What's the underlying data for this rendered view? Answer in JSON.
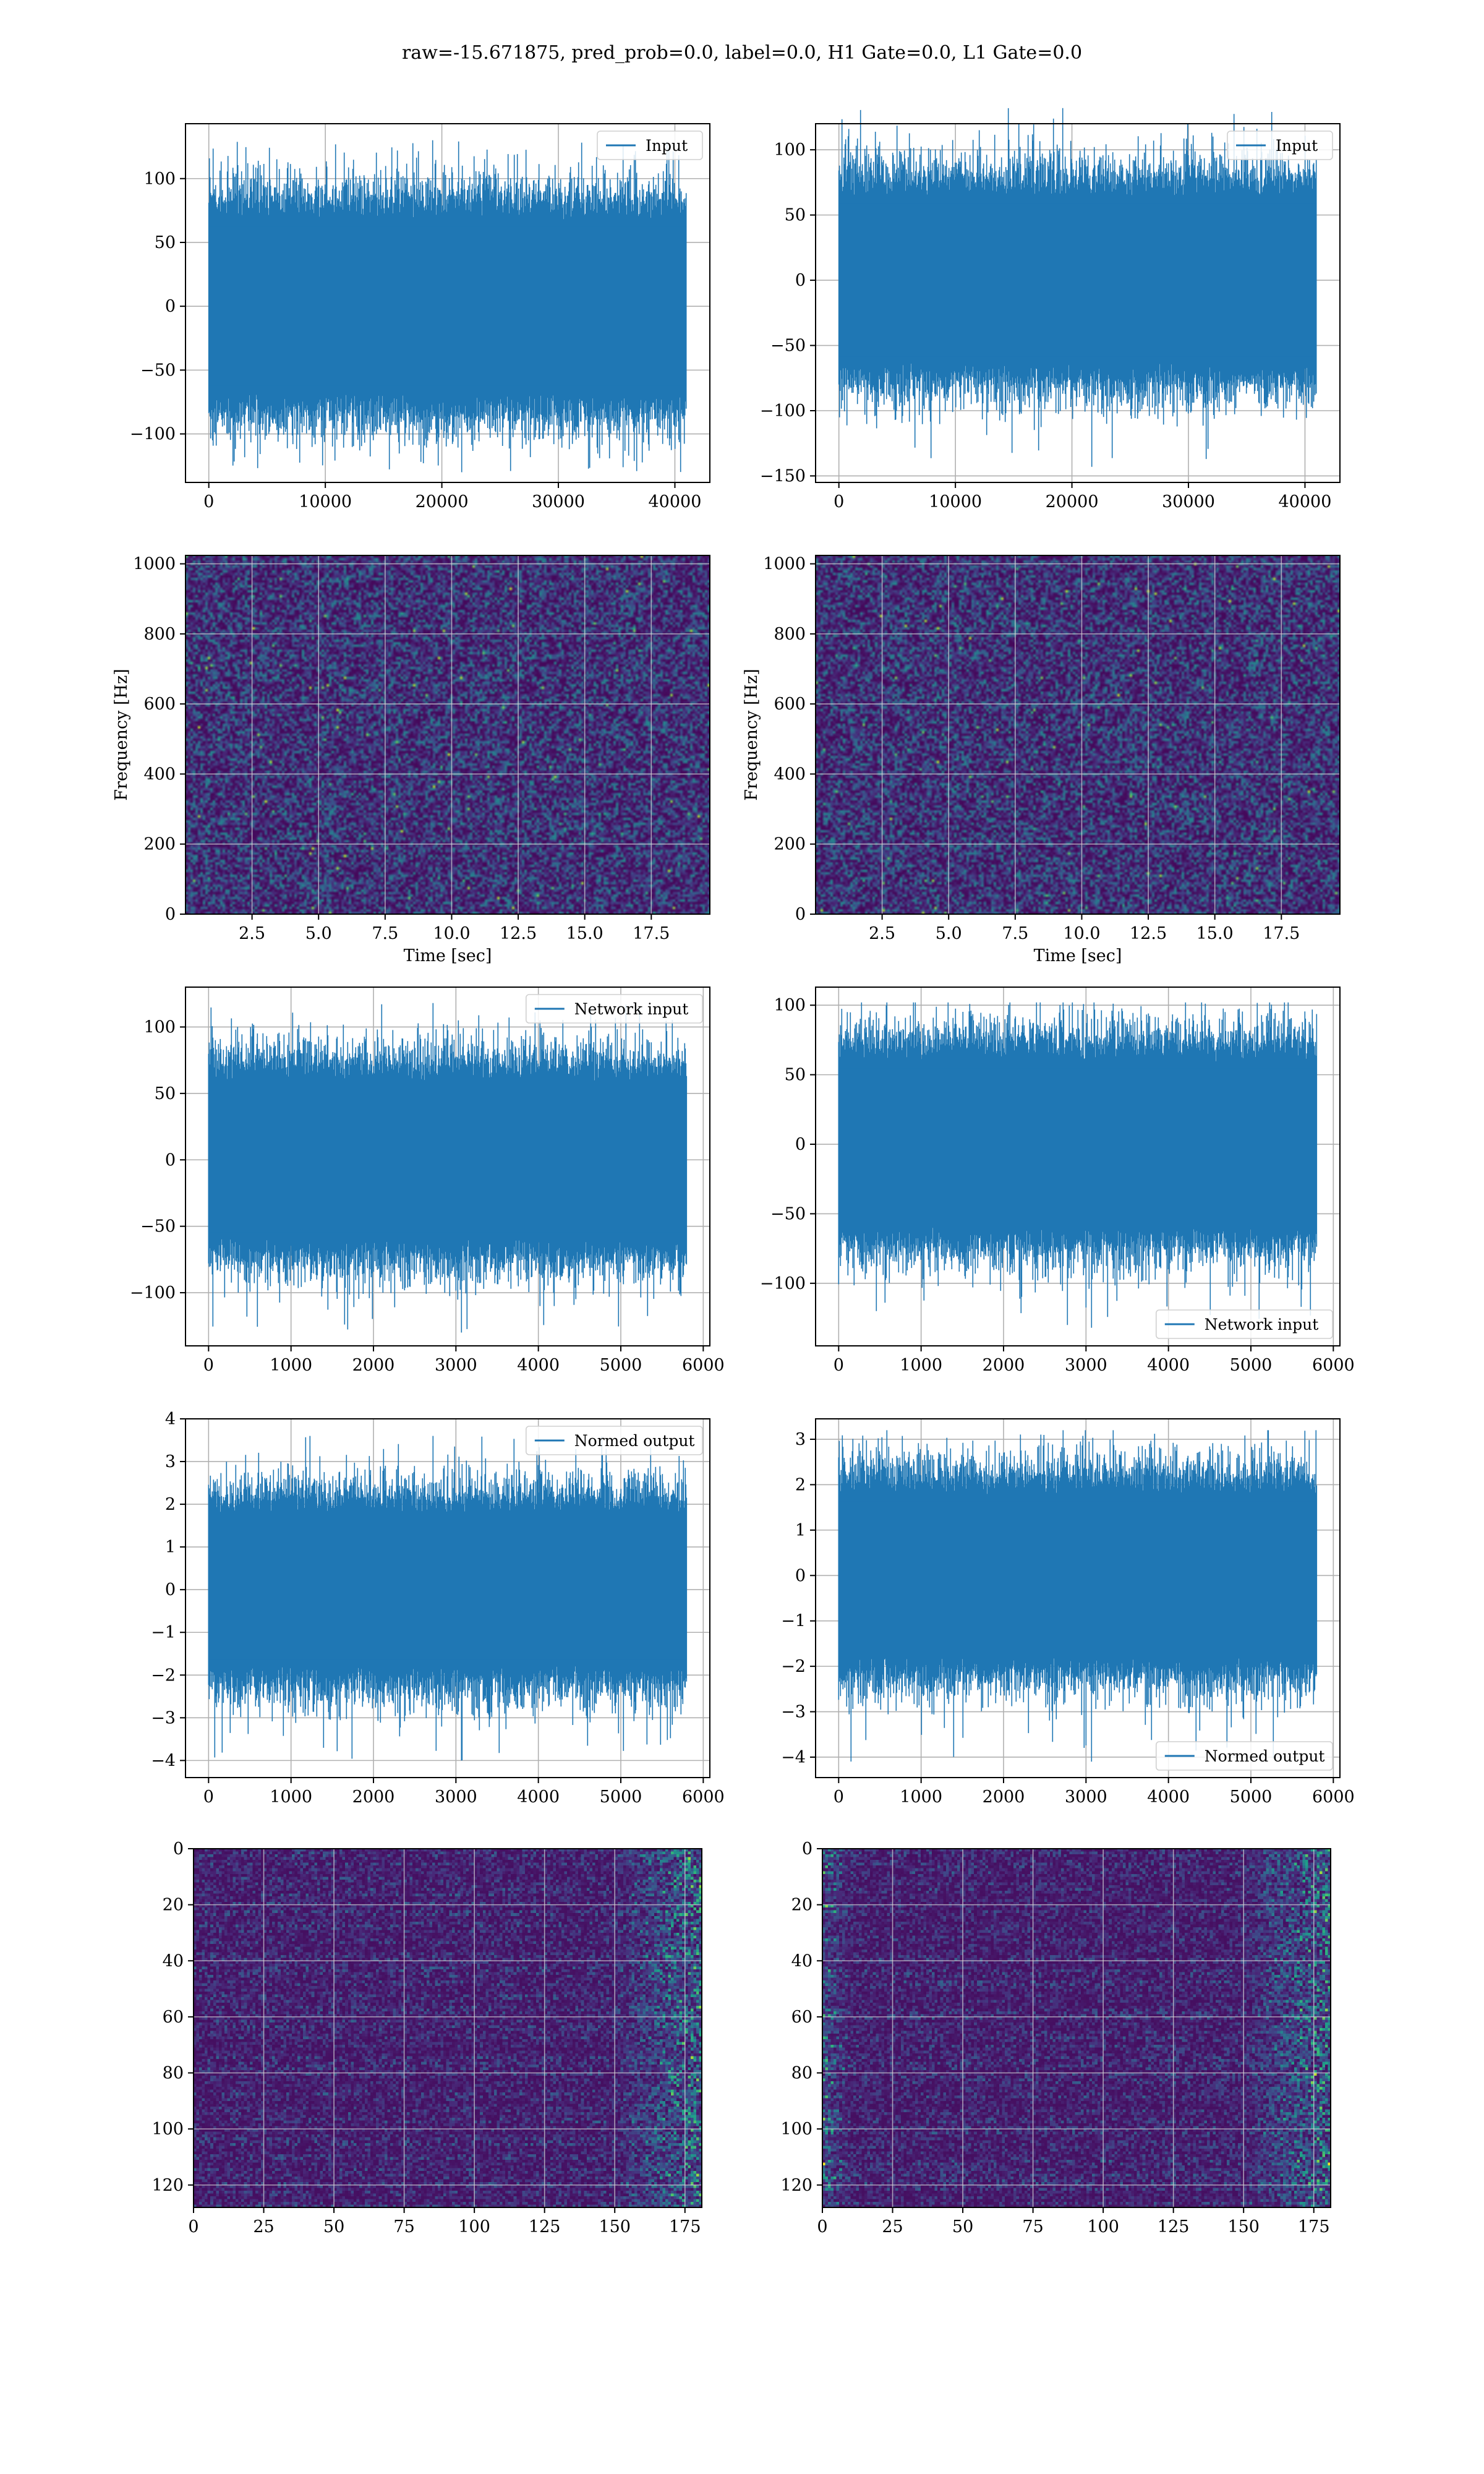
{
  "title": "raw=-15.671875, pred_prob=0.0, label=0.0, H1 Gate=0.0, L1 Gate=0.0",
  "colors": {
    "series": "#1f77b4",
    "grid": "#b0b0b0",
    "axis": "#000000"
  },
  "chart_data": [
    {
      "id": "input-left",
      "type": "line",
      "series": [
        {
          "name": "Input",
          "n_samples": 40960,
          "amplitude_range": [
            -130,
            130
          ],
          "center": 0,
          "envelope": [
            -80,
            80
          ]
        }
      ],
      "xlim": [
        -2000,
        43000
      ],
      "ylim": [
        -138,
        143
      ],
      "xticks": [
        0,
        10000,
        20000,
        30000,
        40000
      ],
      "yticks": [
        -100,
        -50,
        0,
        50,
        100
      ],
      "legend_position": "top-right",
      "grid": true,
      "xlabel": "",
      "ylabel": ""
    },
    {
      "id": "input-right",
      "type": "line",
      "series": [
        {
          "name": "Input",
          "n_samples": 40960,
          "amplitude_range": [
            -143,
            132
          ],
          "center": 0,
          "envelope": [
            -75,
            75
          ]
        }
      ],
      "xlim": [
        -2000,
        43000
      ],
      "ylim": [
        -155,
        120
      ],
      "xticks": [
        0,
        10000,
        20000,
        30000,
        40000
      ],
      "yticks": [
        -150,
        -100,
        -50,
        0,
        50,
        100
      ],
      "legend_position": "top-right",
      "grid": true,
      "xlabel": "",
      "ylabel": ""
    },
    {
      "id": "spectrogram-left",
      "type": "heatmap",
      "colormap": "viridis",
      "xlim": [
        0,
        19.7
      ],
      "ylim": [
        0,
        1024
      ],
      "xticks": [
        2.5,
        5.0,
        7.5,
        10.0,
        12.5,
        15.0,
        17.5
      ],
      "yticks": [
        0,
        200,
        400,
        600,
        800,
        1000
      ],
      "xlabel": "Time [sec]",
      "ylabel": "Frequency [Hz]",
      "grid": true,
      "notable": "sparse bright spots, e.g. near t≈6.1 s, f≈835 Hz"
    },
    {
      "id": "spectrogram-right",
      "type": "heatmap",
      "colormap": "viridis",
      "xlim": [
        0,
        19.7
      ],
      "ylim": [
        0,
        1024
      ],
      "xticks": [
        2.5,
        5.0,
        7.5,
        10.0,
        12.5,
        15.0,
        17.5
      ],
      "yticks": [
        0,
        200,
        400,
        600,
        800,
        1000
      ],
      "xlabel": "Time [sec]",
      "ylabel": "Frequency [Hz]",
      "grid": true,
      "notable": "sparse bright spots, e.g. near t≈11.3 s, f≈270 Hz"
    },
    {
      "id": "network-input-left",
      "type": "line",
      "series": [
        {
          "name": "Network input",
          "n_samples": 5800,
          "amplitude_range": [
            -130,
            118
          ],
          "center": 0,
          "envelope": [
            -70,
            70
          ]
        }
      ],
      "xlim": [
        -280,
        6080
      ],
      "ylim": [
        -140,
        130
      ],
      "xticks": [
        0,
        1000,
        2000,
        3000,
        4000,
        5000,
        6000
      ],
      "yticks": [
        -100,
        -50,
        0,
        50,
        100
      ],
      "legend_position": "top-right",
      "grid": true,
      "xlabel": "",
      "ylabel": ""
    },
    {
      "id": "network-input-right",
      "type": "line",
      "series": [
        {
          "name": "Network input",
          "n_samples": 5800,
          "amplitude_range": [
            -132,
            102
          ],
          "center": 0,
          "envelope": [
            -70,
            70
          ]
        }
      ],
      "xlim": [
        -280,
        6080
      ],
      "ylim": [
        -145,
        113
      ],
      "xticks": [
        0,
        1000,
        2000,
        3000,
        4000,
        5000,
        6000
      ],
      "yticks": [
        -100,
        -50,
        0,
        50,
        100
      ],
      "legend_position": "bottom-right",
      "grid": true,
      "xlabel": "",
      "ylabel": ""
    },
    {
      "id": "normed-output-left",
      "type": "line",
      "series": [
        {
          "name": "Normed output",
          "n_samples": 5800,
          "amplitude_range": [
            -4.0,
            3.6
          ],
          "center": 0,
          "envelope": [
            -2.1,
            2.1
          ]
        }
      ],
      "xlim": [
        -280,
        6080
      ],
      "ylim": [
        -4.4,
        4.0
      ],
      "xticks": [
        0,
        1000,
        2000,
        3000,
        4000,
        5000,
        6000
      ],
      "yticks": [
        -4,
        -3,
        -2,
        -1,
        0,
        1,
        2,
        3,
        4
      ],
      "legend_position": "top-right",
      "grid": true,
      "xlabel": "",
      "ylabel": ""
    },
    {
      "id": "normed-output-right",
      "type": "line",
      "series": [
        {
          "name": "Normed output",
          "n_samples": 5800,
          "amplitude_range": [
            -4.1,
            3.2
          ],
          "center": 0,
          "envelope": [
            -2.1,
            2.1
          ]
        }
      ],
      "xlim": [
        -280,
        6080
      ],
      "ylim": [
        -4.45,
        3.45
      ],
      "xticks": [
        0,
        1000,
        2000,
        3000,
        4000,
        5000,
        6000
      ],
      "yticks": [
        -4,
        -3,
        -2,
        -1,
        0,
        1,
        2,
        3
      ],
      "legend_position": "bottom-right",
      "grid": true,
      "xlabel": "",
      "ylabel": ""
    },
    {
      "id": "feature-map-left",
      "type": "heatmap",
      "colormap": "viridis",
      "rows": 128,
      "cols": 181,
      "xlim": [
        0,
        181
      ],
      "ylim": [
        128,
        0
      ],
      "xticks": [
        0,
        25,
        50,
        75,
        100,
        125,
        150,
        175
      ],
      "yticks": [
        0,
        20,
        40,
        60,
        80,
        100,
        120
      ],
      "grid": true,
      "notable": "brighter activations concentrated in columns 150–181"
    },
    {
      "id": "feature-map-right",
      "type": "heatmap",
      "colormap": "viridis",
      "rows": 128,
      "cols": 181,
      "xlim": [
        0,
        181
      ],
      "ylim": [
        128,
        0
      ],
      "xticks": [
        0,
        25,
        50,
        75,
        100,
        125,
        150,
        175
      ],
      "yticks": [
        0,
        20,
        40,
        60,
        80,
        100,
        120
      ],
      "grid": true,
      "notable": "brighter activations in columns 0–10 and 140–181"
    }
  ]
}
